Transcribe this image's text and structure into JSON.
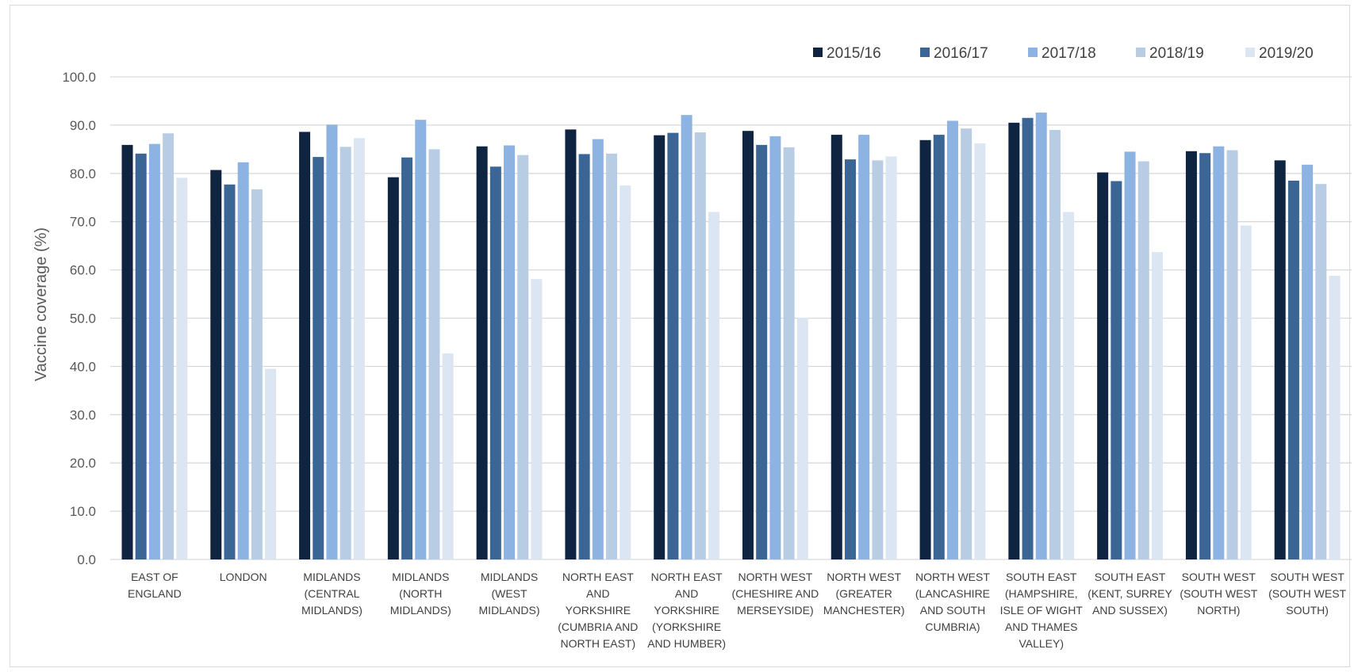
{
  "chart_data": {
    "type": "bar",
    "title": "",
    "xlabel": "",
    "ylabel": "Vaccine coverage (%)",
    "ylim": [
      0,
      100
    ],
    "yticks": [
      "0.0",
      "10.0",
      "20.0",
      "30.0",
      "40.0",
      "50.0",
      "60.0",
      "70.0",
      "80.0",
      "90.0",
      "100.0"
    ],
    "grid": true,
    "legend_position": "top-right",
    "categories": [
      [
        "EAST OF",
        "ENGLAND"
      ],
      [
        "LONDON"
      ],
      [
        "MIDLANDS",
        "(CENTRAL",
        "MIDLANDS)"
      ],
      [
        "MIDLANDS",
        "(NORTH",
        "MIDLANDS)"
      ],
      [
        "MIDLANDS",
        "(WEST",
        "MIDLANDS)"
      ],
      [
        "NORTH EAST",
        "AND",
        "YORKSHIRE",
        "(CUMBRIA AND",
        "NORTH EAST)"
      ],
      [
        "NORTH EAST",
        "AND",
        "YORKSHIRE",
        "(YORKSHIRE",
        "AND HUMBER)"
      ],
      [
        "NORTH WEST",
        "(CHESHIRE AND",
        "MERSEYSIDE)"
      ],
      [
        "NORTH WEST",
        "(GREATER",
        "MANCHESTER)"
      ],
      [
        "NORTH WEST",
        "(LANCASHIRE",
        "AND SOUTH",
        "CUMBRIA)"
      ],
      [
        "SOUTH EAST",
        "(HAMPSHIRE,",
        "ISLE OF WIGHT",
        "AND THAMES",
        "VALLEY)"
      ],
      [
        "SOUTH EAST",
        "(KENT, SURREY",
        "AND SUSSEX)"
      ],
      [
        "SOUTH WEST",
        "(SOUTH WEST",
        "NORTH)"
      ],
      [
        "SOUTH WEST",
        "(SOUTH WEST",
        "SOUTH)"
      ]
    ],
    "series": [
      {
        "name": "2015/16",
        "color": "#0f2440",
        "values": [
          85.9,
          80.7,
          88.6,
          79.2,
          85.6,
          89.1,
          87.9,
          88.8,
          88.0,
          86.9,
          90.5,
          80.2,
          84.6,
          82.7
        ]
      },
      {
        "name": "2016/17",
        "color": "#3a6595",
        "values": [
          84.1,
          77.7,
          83.4,
          83.3,
          81.4,
          84.0,
          88.4,
          85.9,
          82.9,
          88.0,
          91.5,
          78.4,
          84.2,
          78.5
        ]
      },
      {
        "name": "2017/18",
        "color": "#8db3e2",
        "values": [
          86.1,
          82.3,
          90.1,
          91.1,
          85.8,
          87.1,
          92.1,
          87.7,
          88.0,
          90.9,
          92.6,
          84.5,
          85.6,
          81.8
        ]
      },
      {
        "name": "2018/19",
        "color": "#b8cce4",
        "values": [
          88.3,
          76.7,
          85.5,
          85.0,
          83.8,
          84.1,
          88.5,
          85.4,
          82.7,
          89.3,
          89.0,
          82.5,
          84.8,
          77.8
        ]
      },
      {
        "name": "2019/20",
        "color": "#dce6f2",
        "values": [
          79.1,
          39.5,
          87.3,
          42.7,
          58.1,
          77.5,
          72.0,
          50.1,
          83.5,
          86.2,
          72.0,
          63.7,
          69.2,
          58.8
        ]
      }
    ]
  }
}
